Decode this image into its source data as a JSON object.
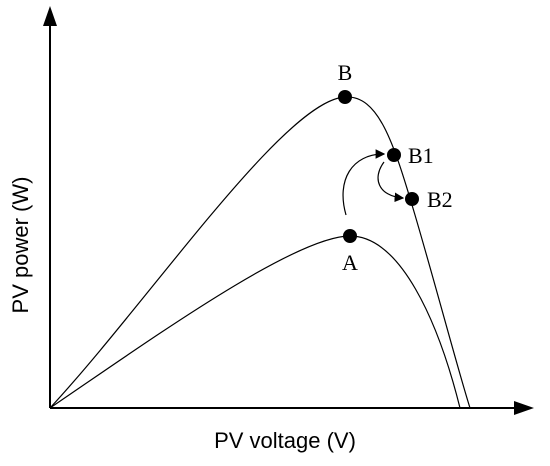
{
  "axes": {
    "x_label": "PV voltage (V)",
    "y_label": "PV power (W)"
  },
  "points": [
    {
      "label": "B"
    },
    {
      "label": "B1"
    },
    {
      "label": "B2"
    },
    {
      "label": "A"
    }
  ]
}
